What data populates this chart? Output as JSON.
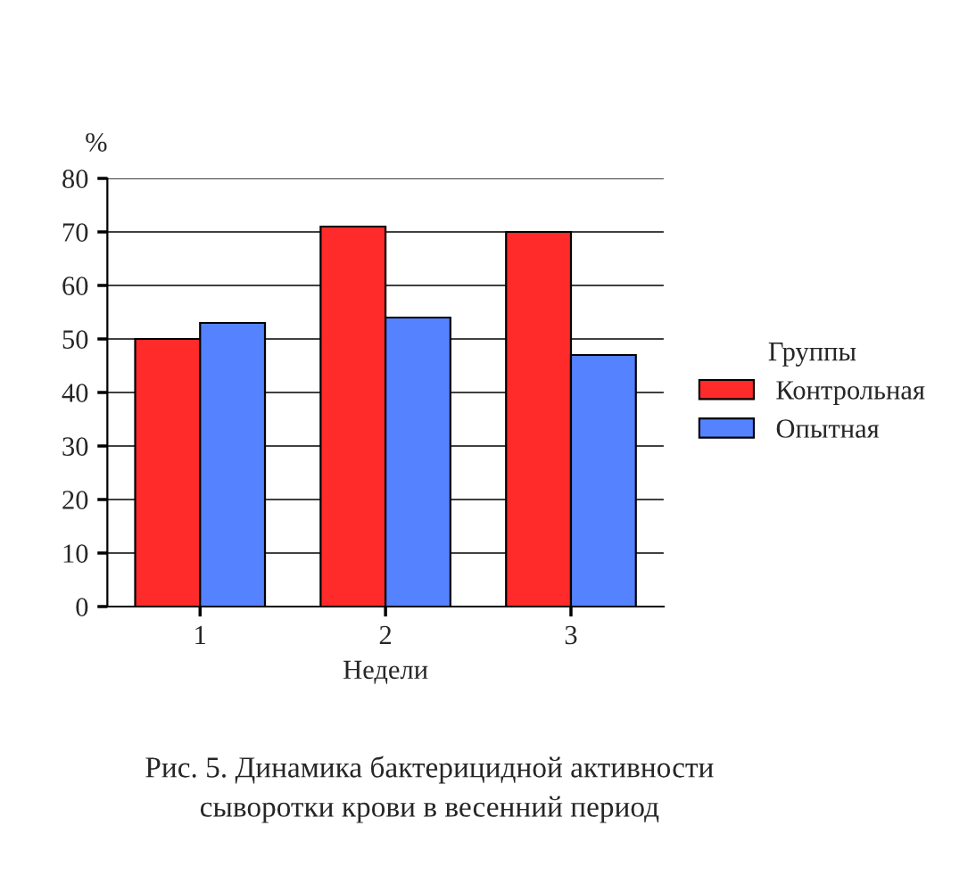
{
  "chart_data": {
    "type": "bar",
    "categories": [
      "1",
      "2",
      "3"
    ],
    "xlabel": "Недели",
    "ylabel": "%",
    "legend_title": "Группы",
    "series": [
      {
        "name": "Контрольная",
        "color": "#ff2a2a",
        "values": [
          50,
          71,
          70
        ]
      },
      {
        "name": "Опытная",
        "color": "#5582ff",
        "values": [
          53,
          54,
          47
        ]
      }
    ],
    "ylim": [
      0,
      80
    ],
    "yticks": [
      0,
      10,
      20,
      30,
      40,
      50,
      60,
      70,
      80
    ],
    "grid": "y",
    "legend": "right",
    "annotations": [
      "Рис. 5. Динамика бактерицидной активности\nсыворотки крови в весенний период"
    ]
  }
}
